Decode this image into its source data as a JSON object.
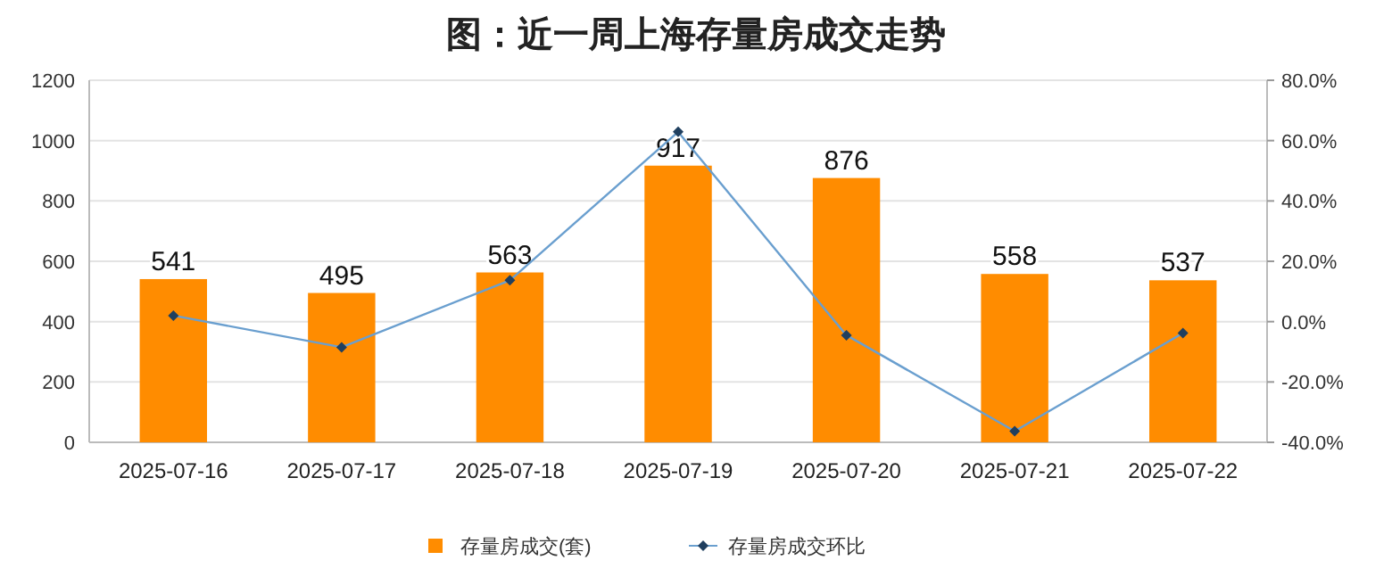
{
  "chart_data": {
    "type": "bar",
    "title": "图：近一周上海存量房成交走势",
    "categories": [
      "2025-07-16",
      "2025-07-17",
      "2025-07-18",
      "2025-07-19",
      "2025-07-20",
      "2025-07-21",
      "2025-07-22"
    ],
    "series": [
      {
        "name": "存量房成交(套)",
        "color": "#ff8c00",
        "values": [
          541,
          495,
          563,
          917,
          876,
          558,
          537
        ],
        "data_labels": true
      },
      {
        "name": "存量房成交环比",
        "type": "line",
        "axis": "y2",
        "color": "#6a9fcf",
        "marker": "diamond",
        "values": [
          2.0,
          -8.5,
          13.7,
          62.9,
          -4.5,
          -36.3,
          -3.8
        ]
      }
    ],
    "ylim": [
      0,
      1200
    ],
    "yticks": [
      0,
      200,
      400,
      600,
      800,
      1000,
      1200
    ],
    "y2lim": [
      -40,
      80
    ],
    "y2ticks": [
      {
        "value": -40,
        "label": "-40.0%"
      },
      {
        "value": -20,
        "label": "-20.0%"
      },
      {
        "value": 0,
        "label": "0.0%"
      },
      {
        "value": 20,
        "label": "20.0%"
      },
      {
        "value": 40,
        "label": "40.0%"
      },
      {
        "value": 60,
        "label": "60.0%"
      },
      {
        "value": 80,
        "label": "80.0%"
      }
    ],
    "grid": "y",
    "legend": "bottom"
  }
}
